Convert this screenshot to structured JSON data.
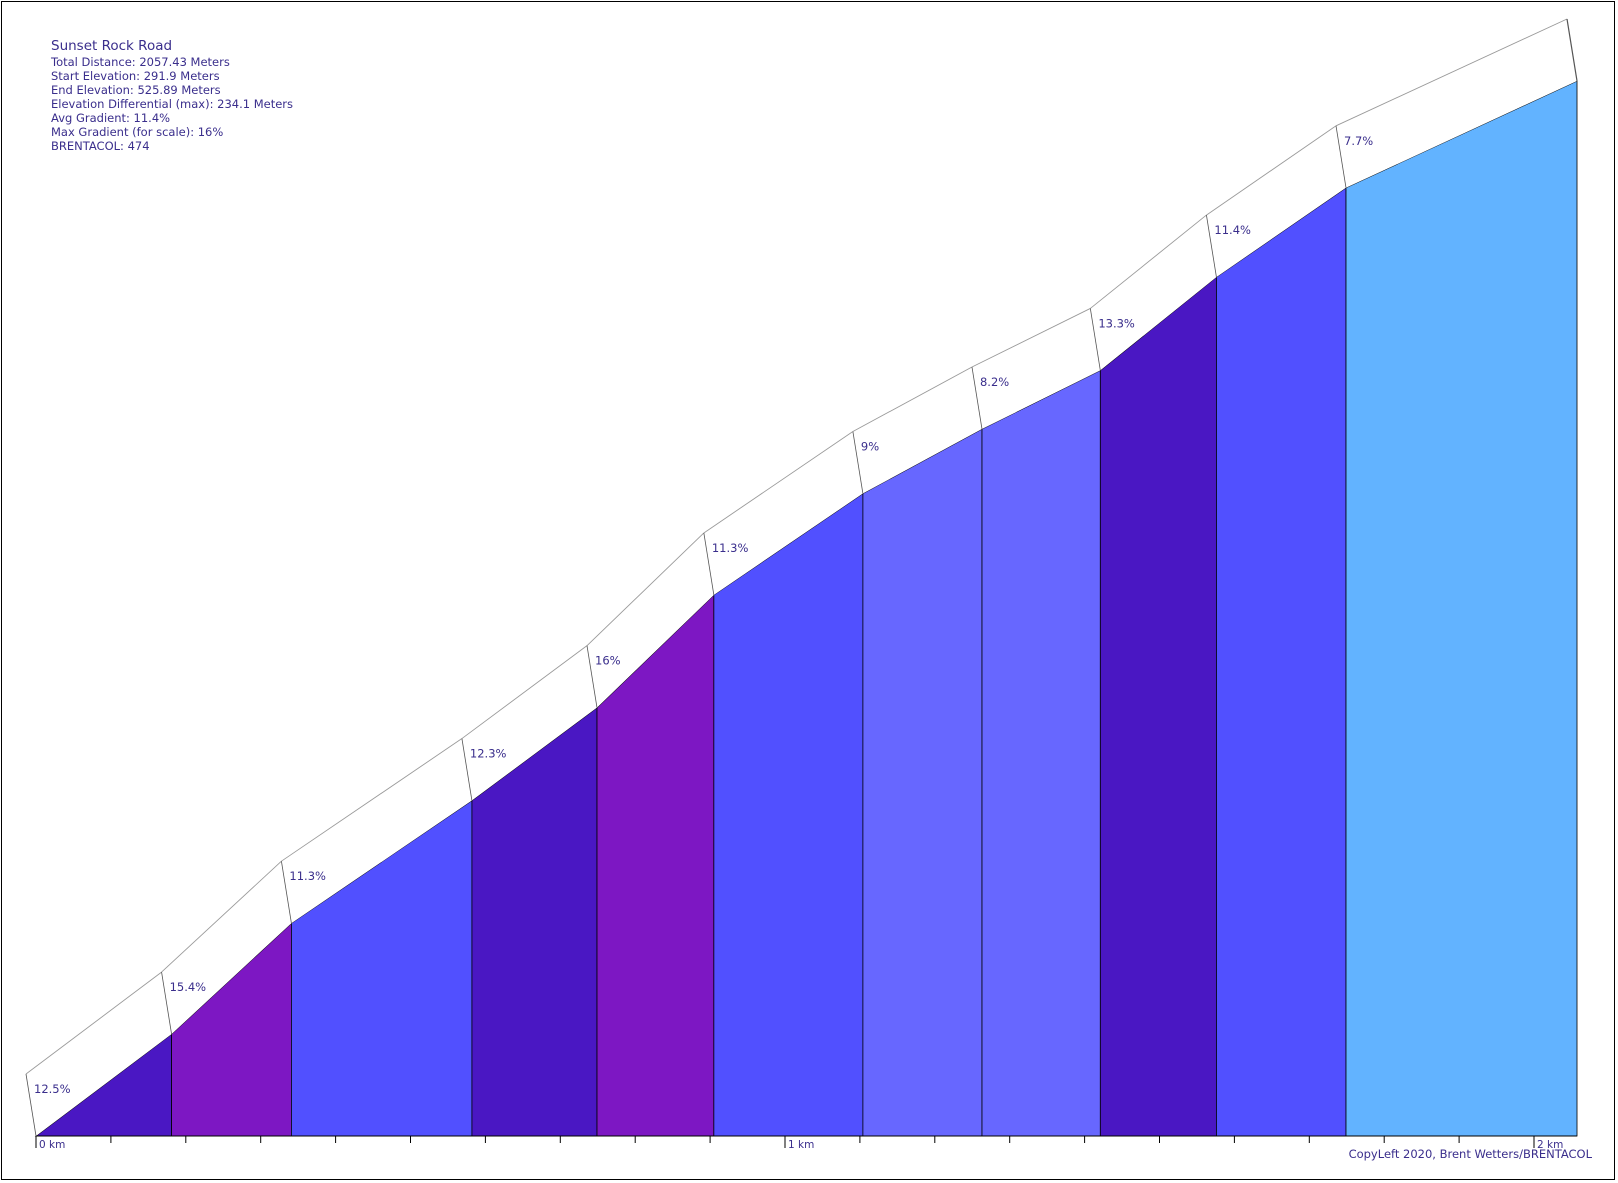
{
  "info": {
    "title": "Sunset Rock Road",
    "lines": [
      "Total Distance: 2057.43 Meters",
      "Start Elevation: 291.9 Meters",
      "End Elevation: 525.89 Meters",
      "Elevation Differential (max): 234.1 Meters",
      "Avg Gradient: 11.4%",
      "Max Gradient (for scale): 16%",
      "BRENTACOL: 474"
    ]
  },
  "copyright": "CopyLeft 2020, Brent Wetters/BRENTACOL",
  "chart_data": {
    "type": "area",
    "x_unit": "km",
    "x_ticks": [
      {
        "x": 0,
        "label": "0 km"
      },
      {
        "x": 1,
        "label": "1 km"
      },
      {
        "x": 2,
        "label": "2 km"
      }
    ],
    "minor_tick_step": 0.1,
    "xlim": [
      0,
      2.05743
    ],
    "ylim": [
      291.9,
      525.89
    ],
    "points": [
      {
        "x": 0,
        "elevation": 291.9
      },
      {
        "x": 0.181,
        "elevation": 314.5
      },
      {
        "x": 0.341,
        "elevation": 339.1
      },
      {
        "x": 0.582,
        "elevation": 366.3
      },
      {
        "x": 0.749,
        "elevation": 386.9
      },
      {
        "x": 0.905,
        "elevation": 411.9
      },
      {
        "x": 1.104,
        "elevation": 434.4
      },
      {
        "x": 1.263,
        "elevation": 448.7
      },
      {
        "x": 1.421,
        "elevation": 461.7
      },
      {
        "x": 1.576,
        "elevation": 482.4
      },
      {
        "x": 1.749,
        "elevation": 502.2
      },
      {
        "x": 2.05743,
        "elevation": 525.89
      }
    ],
    "segments": [
      {
        "gradient_label": "12.5%",
        "color": "#4a17c3"
      },
      {
        "gradient_label": "15.4%",
        "color": "#7d17c3"
      },
      {
        "gradient_label": "11.3%",
        "color": "#5150ff"
      },
      {
        "gradient_label": "12.3%",
        "color": "#4a17c3"
      },
      {
        "gradient_label": "16%",
        "color": "#7d17c3"
      },
      {
        "gradient_label": "11.3%",
        "color": "#5150ff"
      },
      {
        "gradient_label": "9%",
        "color": "#6767ff"
      },
      {
        "gradient_label": "8.2%",
        "color": "#6767ff"
      },
      {
        "gradient_label": "13.3%",
        "color": "#4a17c3"
      },
      {
        "gradient_label": "11.4%",
        "color": "#5150ff"
      },
      {
        "gradient_label": "7.7%",
        "color": "#62b3ff"
      }
    ]
  }
}
